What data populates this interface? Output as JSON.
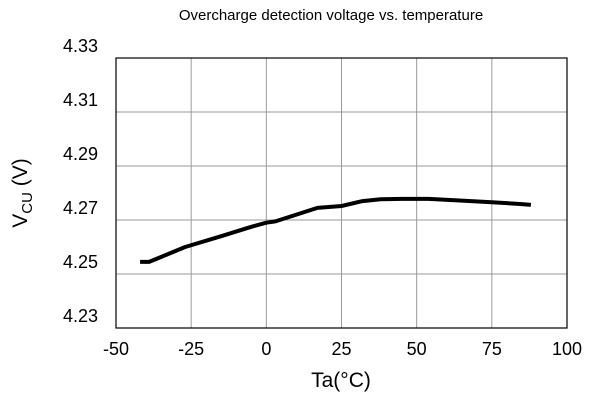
{
  "chart_data": {
    "type": "line",
    "title": "Overcharge detection voltage vs. temperature",
    "xlabel": "Ta(°C)",
    "ylabel": {
      "main": "V",
      "sub": "CU",
      "unit": " (V)"
    },
    "xlim": [
      -50,
      100
    ],
    "ylim": [
      4.23,
      4.33
    ],
    "xticks": [
      -50,
      -25,
      0,
      25,
      50,
      75,
      100
    ],
    "yticks": [
      4.23,
      4.25,
      4.27,
      4.29,
      4.31,
      4.33
    ],
    "grid": true,
    "series": [
      {
        "x": [
          -42,
          -39,
          -27,
          -15,
          -5,
          0,
          3,
          10,
          17,
          25,
          32,
          38,
          45,
          54,
          65,
          75,
          85,
          88
        ],
        "y": [
          4.2545,
          4.2545,
          4.26,
          4.264,
          4.2675,
          4.269,
          4.2695,
          4.272,
          4.2745,
          4.2752,
          4.277,
          4.2777,
          4.2778,
          4.2778,
          4.2772,
          4.2766,
          4.2759,
          4.2756
        ],
        "color": "#000000"
      }
    ]
  }
}
